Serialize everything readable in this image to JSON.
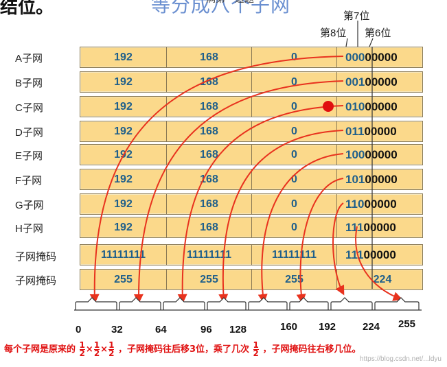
{
  "title_text": "等分成八个子网",
  "caption_text": "满第一道题",
  "corner_text": "结位。",
  "bit_labels": {
    "bit7": "第7位",
    "bit8": "第8位",
    "bit6": "第6位"
  },
  "rows": [
    {
      "label": "A子网",
      "o1": "192",
      "o2": "168",
      "o3": "0",
      "hi": "000",
      "lo": "00000"
    },
    {
      "label": "B子网",
      "o1": "192",
      "o2": "168",
      "o3": "0",
      "hi": "001",
      "lo": "00000"
    },
    {
      "label": "C子网",
      "o1": "192",
      "o2": "168",
      "o3": "0",
      "hi": "010",
      "lo": "00000"
    },
    {
      "label": "D子网",
      "o1": "192",
      "o2": "168",
      "o3": "0",
      "hi": "011",
      "lo": "00000"
    },
    {
      "label": "E子网",
      "o1": "192",
      "o2": "168",
      "o3": "0",
      "hi": "100",
      "lo": "00000"
    },
    {
      "label": "F子网",
      "o1": "192",
      "o2": "168",
      "o3": "0",
      "hi": "101",
      "lo": "00000"
    },
    {
      "label": "G子网",
      "o1": "192",
      "o2": "168",
      "o3": "0",
      "hi": "110",
      "lo": "00000"
    },
    {
      "label": "H子网",
      "o1": "192",
      "o2": "168",
      "o3": "0",
      "hi": "111",
      "lo": "00000"
    }
  ],
  "mask_binary": {
    "label": "子网掩码",
    "o1": "11111111",
    "o2": "11111111",
    "o3": "11111111",
    "hi": "111",
    "lo": "00000"
  },
  "mask_decimal": {
    "label": "子网掩码",
    "o1": "255",
    "o2": "255",
    "o3": "255",
    "o4": "224"
  },
  "scale_ticks": [
    "0",
    "32",
    "64",
    "96",
    "128",
    "160",
    "192",
    "224",
    "255"
  ],
  "footer": {
    "part1": "每个子网是原来的",
    "frac_num": "1",
    "frac_den": "2",
    "times": "×",
    "part2": "，子网掩码往后移3位，乘了几次",
    "part3": "，子网掩码往右移几位。"
  },
  "watermark": "https://blog.csdn.net/...ldyu",
  "colors": {
    "row_fill": "#fbd98b",
    "octet_text": "#1f5f8b",
    "arrow": "#e8321e",
    "dot": "#e01010",
    "footer": "#e01010"
  }
}
